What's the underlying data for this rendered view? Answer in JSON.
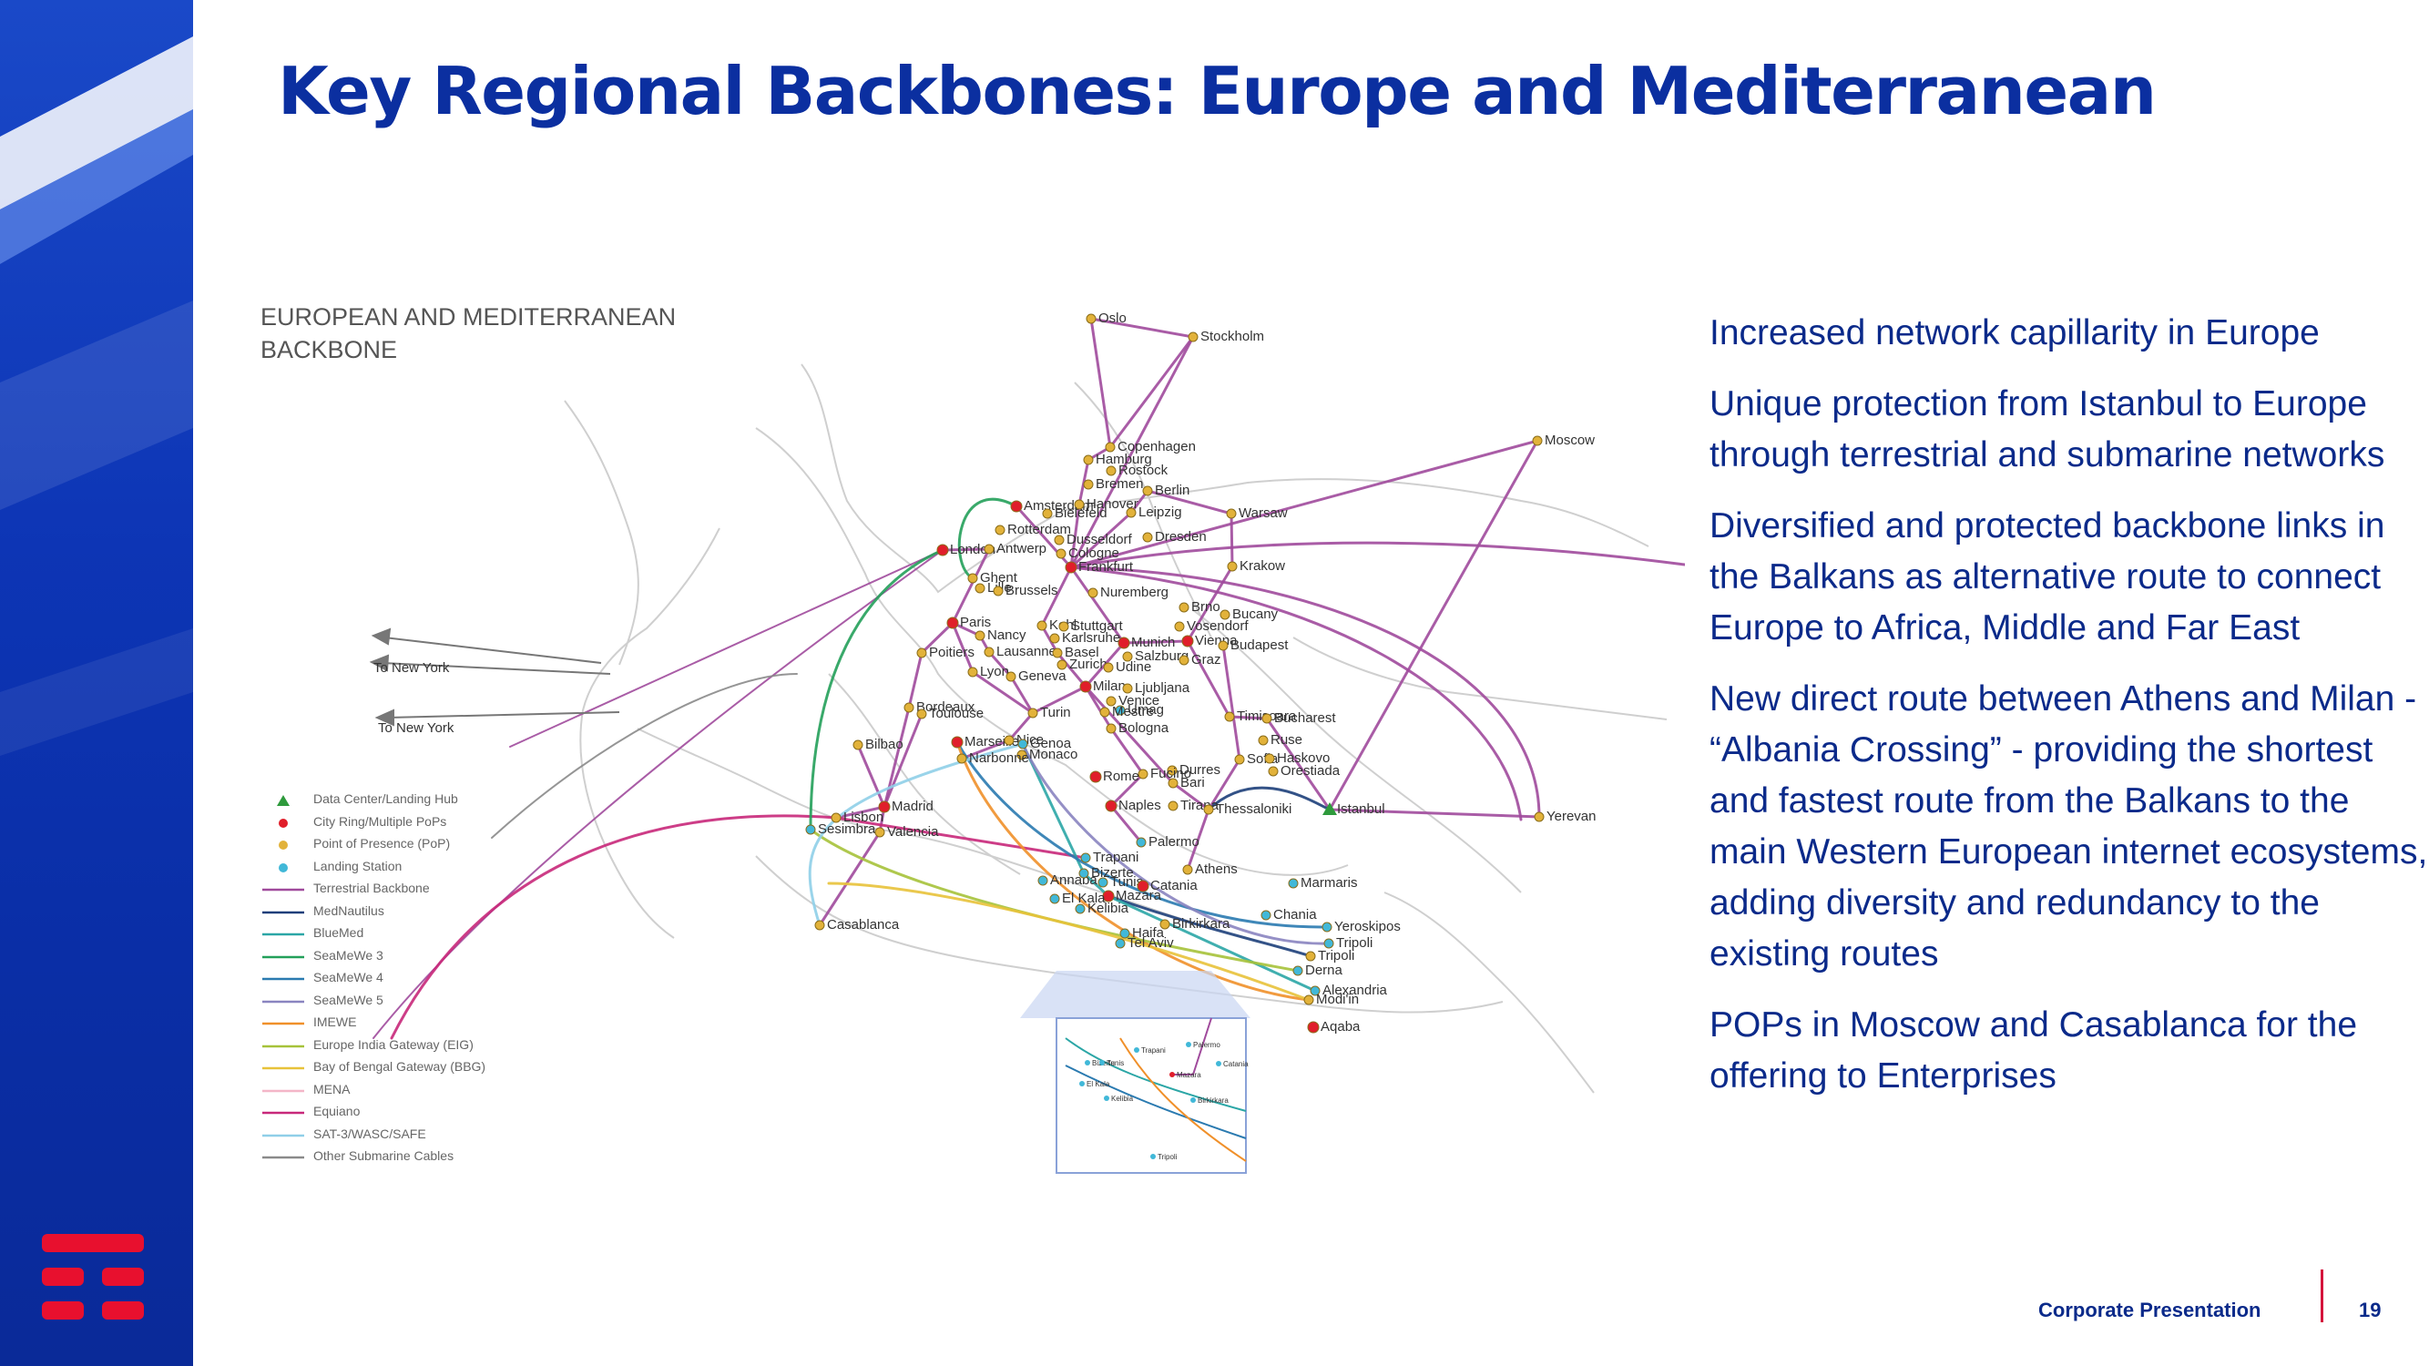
{
  "slide": {
    "title": "Key Regional Backbones: Europe and Mediterranean",
    "footer_label": "Corporate Presentation",
    "page_number": "19"
  },
  "map": {
    "heading": "EUROPEAN AND MEDITERRANEAN BACKBONE",
    "to_new_york_labels": [
      "To New York",
      "To New York"
    ],
    "legend": [
      {
        "label": "Data Center/Landing Hub",
        "swatch": "triangle",
        "color": "#2e9a3c"
      },
      {
        "label": "City Ring/Multiple PoPs",
        "swatch": "dot",
        "color": "#e01e2a"
      },
      {
        "label": "Point of Presence (PoP)",
        "swatch": "dot",
        "color": "#e2b23a"
      },
      {
        "label": "Landing Station",
        "swatch": "dot",
        "color": "#41b8d8"
      },
      {
        "label": "Terrestrial Backbone",
        "swatch": "line",
        "color": "#a04a9c"
      },
      {
        "label": "MedNautilus",
        "swatch": "line",
        "color": "#1d3f7a"
      },
      {
        "label": "BlueMed",
        "swatch": "line",
        "color": "#2ba6a6"
      },
      {
        "label": "SeaMeWe 3",
        "swatch": "line",
        "color": "#23a05a"
      },
      {
        "label": "SeaMeWe 4",
        "swatch": "line",
        "color": "#2a7ab0"
      },
      {
        "label": "SeaMeWe 5",
        "swatch": "line",
        "color": "#8a84c0"
      },
      {
        "label": "IMEWE",
        "swatch": "line",
        "color": "#f0902a"
      },
      {
        "label": "Europe India Gateway (EIG)",
        "swatch": "line",
        "color": "#a6c23a"
      },
      {
        "label": "Bay of Bengal Gateway (BBG)",
        "swatch": "line",
        "color": "#e8c23a"
      },
      {
        "label": "MENA",
        "swatch": "line",
        "color": "#f4b6c8"
      },
      {
        "label": "Equiano",
        "swatch": "line",
        "color": "#c8287a"
      },
      {
        "label": "SAT-3/WASC/SAFE",
        "swatch": "line",
        "color": "#8fcfe8"
      },
      {
        "label": "Other Submarine Cables",
        "swatch": "line",
        "color": "#8a8a8a"
      }
    ],
    "cities": [
      {
        "name": "Oslo",
        "type": "pop"
      },
      {
        "name": "Stockholm",
        "type": "pop"
      },
      {
        "name": "Moscow",
        "type": "pop"
      },
      {
        "name": "Copenhagen",
        "type": "pop"
      },
      {
        "name": "Hamburg",
        "type": "pop"
      },
      {
        "name": "Rostock",
        "type": "pop"
      },
      {
        "name": "Bremen",
        "type": "pop"
      },
      {
        "name": "Berlin",
        "type": "pop"
      },
      {
        "name": "Amsterdam",
        "type": "ring"
      },
      {
        "name": "Hanover",
        "type": "pop"
      },
      {
        "name": "Warsaw",
        "type": "pop"
      },
      {
        "name": "Bielefeld",
        "type": "pop"
      },
      {
        "name": "Leipzig",
        "type": "pop"
      },
      {
        "name": "Rotterdam",
        "type": "pop"
      },
      {
        "name": "Dusseldorf",
        "type": "pop"
      },
      {
        "name": "Dresden",
        "type": "pop"
      },
      {
        "name": "London",
        "type": "ring"
      },
      {
        "name": "Antwerp",
        "type": "pop"
      },
      {
        "name": "Cologne",
        "type": "pop"
      },
      {
        "name": "Frankfurt",
        "type": "ring"
      },
      {
        "name": "Krakow",
        "type": "pop"
      },
      {
        "name": "Ghent",
        "type": "pop"
      },
      {
        "name": "Lille",
        "type": "pop"
      },
      {
        "name": "Brussels",
        "type": "pop"
      },
      {
        "name": "Nuremberg",
        "type": "pop"
      },
      {
        "name": "Brno",
        "type": "pop"
      },
      {
        "name": "Bucany",
        "type": "pop"
      },
      {
        "name": "Paris",
        "type": "ring"
      },
      {
        "name": "Kehl",
        "type": "pop"
      },
      {
        "name": "Stuttgart",
        "type": "pop"
      },
      {
        "name": "Vosendorf",
        "type": "pop"
      },
      {
        "name": "Nancy",
        "type": "pop"
      },
      {
        "name": "Karlsruhe",
        "type": "pop"
      },
      {
        "name": "Munich",
        "type": "ring"
      },
      {
        "name": "Vienna",
        "type": "ring"
      },
      {
        "name": "Budapest",
        "type": "pop"
      },
      {
        "name": "Poitiers",
        "type": "pop"
      },
      {
        "name": "Lausanne",
        "type": "pop"
      },
      {
        "name": "Basel",
        "type": "pop"
      },
      {
        "name": "Salzburg",
        "type": "pop"
      },
      {
        "name": "Graz",
        "type": "pop"
      },
      {
        "name": "Zurich",
        "type": "pop"
      },
      {
        "name": "Udine",
        "type": "pop"
      },
      {
        "name": "Lyon",
        "type": "pop"
      },
      {
        "name": "Geneva",
        "type": "pop"
      },
      {
        "name": "Milan",
        "type": "ring"
      },
      {
        "name": "Ljubljana",
        "type": "pop"
      },
      {
        "name": "Venice",
        "type": "pop"
      },
      {
        "name": "Bordeaux",
        "type": "pop"
      },
      {
        "name": "Toulouse",
        "type": "pop"
      },
      {
        "name": "Turin",
        "type": "pop"
      },
      {
        "name": "Umag",
        "type": "landing"
      },
      {
        "name": "Mestre",
        "type": "pop"
      },
      {
        "name": "Timisoara",
        "type": "pop"
      },
      {
        "name": "Bucharest",
        "type": "pop"
      },
      {
        "name": "Bologna",
        "type": "pop"
      },
      {
        "name": "Ruse",
        "type": "pop"
      },
      {
        "name": "Bilbao",
        "type": "pop"
      },
      {
        "name": "Marseille",
        "type": "ring"
      },
      {
        "name": "Nice",
        "type": "pop"
      },
      {
        "name": "Genoa",
        "type": "landing"
      },
      {
        "name": "Monaco",
        "type": "pop"
      },
      {
        "name": "Narbonne",
        "type": "pop"
      },
      {
        "name": "Sofia",
        "type": "pop"
      },
      {
        "name": "Haskovo",
        "type": "pop"
      },
      {
        "name": "Durres",
        "type": "pop"
      },
      {
        "name": "Orestiada",
        "type": "pop"
      },
      {
        "name": "Fucino",
        "type": "pop"
      },
      {
        "name": "Rome",
        "type": "ring"
      },
      {
        "name": "Bari",
        "type": "pop"
      },
      {
        "name": "Madrid",
        "type": "ring"
      },
      {
        "name": "Lisbon",
        "type": "pop"
      },
      {
        "name": "Naples",
        "type": "ring"
      },
      {
        "name": "Tirana",
        "type": "pop"
      },
      {
        "name": "Thessaloniki",
        "type": "pop"
      },
      {
        "name": "Istanbul",
        "type": "hub"
      },
      {
        "name": "Yerevan",
        "type": "pop"
      },
      {
        "name": "Sesimbra",
        "type": "landing"
      },
      {
        "name": "Valencia",
        "type": "pop"
      },
      {
        "name": "Palermo",
        "type": "landing"
      },
      {
        "name": "Trapani",
        "type": "landing"
      },
      {
        "name": "Athens",
        "type": "pop"
      },
      {
        "name": "Annaba",
        "type": "landing"
      },
      {
        "name": "Bizerte",
        "type": "landing"
      },
      {
        "name": "Tunis",
        "type": "landing"
      },
      {
        "name": "Catania",
        "type": "ring"
      },
      {
        "name": "Marmaris",
        "type": "landing"
      },
      {
        "name": "Mazara",
        "type": "ring"
      },
      {
        "name": "El Kala",
        "type": "landing"
      },
      {
        "name": "Kelibia",
        "type": "landing"
      },
      {
        "name": "Chania",
        "type": "landing"
      },
      {
        "name": "Yeroskipos",
        "type": "landing"
      },
      {
        "name": "Casablanca",
        "type": "pop"
      },
      {
        "name": "Birkirkara",
        "type": "pop"
      },
      {
        "name": "Tripoli",
        "type": "landing"
      },
      {
        "name": "Haifa",
        "type": "landing"
      },
      {
        "name": "Tripoli",
        "type": "pop"
      },
      {
        "name": "Tel Aviv",
        "type": "landing"
      },
      {
        "name": "Derna",
        "type": "landing"
      },
      {
        "name": "Alexandria",
        "type": "landing"
      },
      {
        "name": "Modi'in",
        "type": "pop"
      },
      {
        "name": "Aqaba",
        "type": "ring"
      }
    ],
    "inset_labels": [
      "Palermo",
      "Trapani",
      "Catania",
      "Bizerte",
      "Tunis",
      "Mazara",
      "El Kala",
      "Kelibia",
      "Birkirkara",
      "Tripoli"
    ]
  },
  "bullets": [
    "Increased network capillarity in Europe",
    "Unique protection from Istanbul to Europe through terrestrial and submarine networks",
    "Diversified and protected backbone links in the Balkans as alternative route to connect Europe to Africa, Middle and Far East",
    "New direct route between Athens and Milan - “Albania Crossing” - providing the shortest and fastest route from the Balkans to the main Western European internet ecosystems, adding diversity and redundancy to the existing routes",
    "POPs in Moscow and Casablanca for the offering to Enterprises"
  ],
  "colors": {
    "brand_blue": "#0b2fa0",
    "brand_red": "#e8102e",
    "terrestrial": "#a04a9c"
  }
}
